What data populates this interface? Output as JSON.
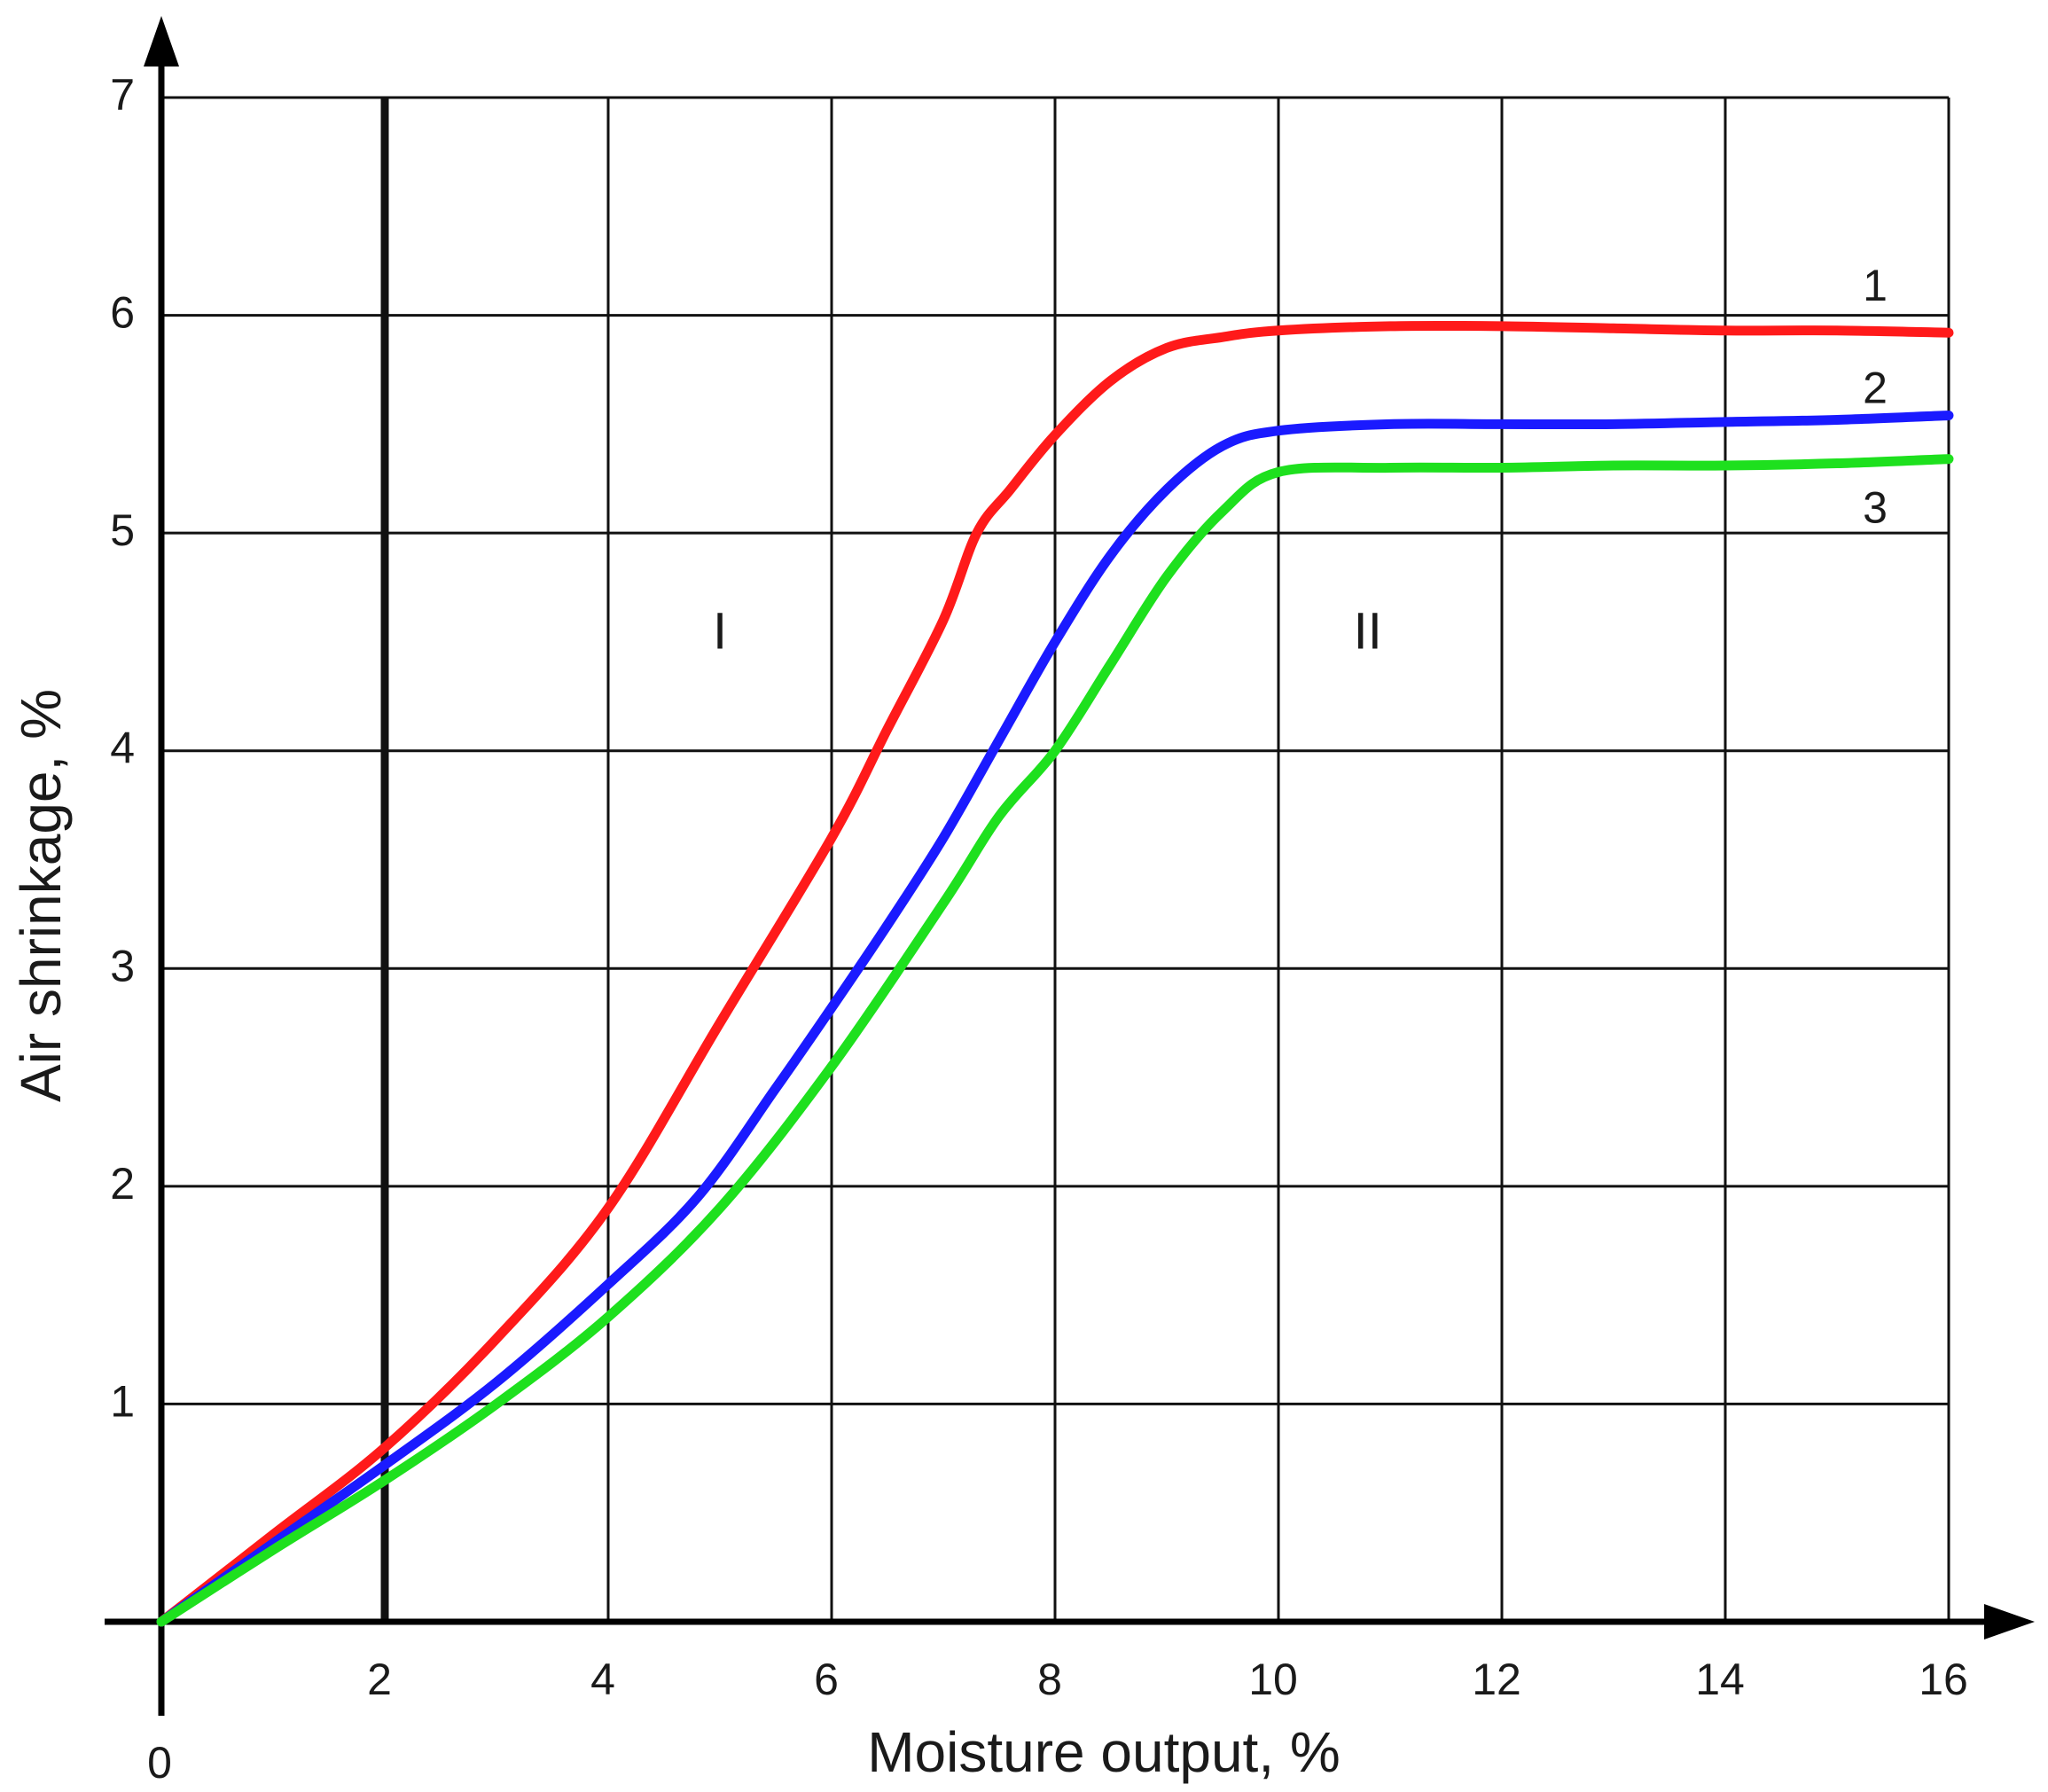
{
  "chart_data": {
    "type": "line",
    "xlabel": "Moisture output, %",
    "ylabel": "Air shrinkage, %",
    "xlim": [
      0,
      16
    ],
    "ylim": [
      0,
      7
    ],
    "grid": true,
    "x_ticks": [
      "2",
      "4",
      "6",
      "8",
      "10",
      "12",
      "14",
      "16"
    ],
    "origin_label": "0",
    "y_ticks": [
      "1",
      "2",
      "3",
      "4",
      "5",
      "6",
      "7"
    ],
    "bold_vertical_gridline_x": 2,
    "series": [
      {
        "name": "1",
        "color": "#ff1a1a",
        "x": [
          0,
          1,
          2,
          3,
          4,
          5,
          6,
          6.5,
          7,
          7.3,
          7.6,
          8,
          8.5,
          9,
          9.5,
          10,
          11,
          12,
          13,
          14,
          15,
          16
        ],
        "y": [
          0,
          0.4,
          0.8,
          1.3,
          1.9,
          2.75,
          3.6,
          4.1,
          4.6,
          5.0,
          5.2,
          5.45,
          5.7,
          5.85,
          5.9,
          5.93,
          5.95,
          5.95,
          5.94,
          5.93,
          5.93,
          5.92
        ]
      },
      {
        "name": "2",
        "color": "#1a1aff",
        "x": [
          0,
          1,
          2,
          3,
          4,
          4.8,
          5.5,
          6,
          6.5,
          7,
          7.5,
          8,
          8.5,
          9,
          9.5,
          10,
          11,
          12,
          13,
          14,
          15,
          16
        ],
        "y": [
          0,
          0.36,
          0.72,
          1.1,
          1.55,
          1.95,
          2.45,
          2.82,
          3.2,
          3.6,
          4.05,
          4.5,
          4.9,
          5.2,
          5.4,
          5.47,
          5.5,
          5.5,
          5.5,
          5.51,
          5.52,
          5.54
        ]
      },
      {
        "name": "3",
        "color": "#1ee01e",
        "x": [
          0,
          1,
          2,
          3,
          4,
          5,
          6,
          7,
          7.5,
          8,
          8.5,
          9,
          9.5,
          10,
          11,
          12,
          13,
          14,
          15,
          16
        ],
        "y": [
          0,
          0.33,
          0.65,
          1.0,
          1.4,
          1.9,
          2.55,
          3.3,
          3.7,
          4.0,
          4.4,
          4.8,
          5.1,
          5.28,
          5.3,
          5.3,
          5.31,
          5.31,
          5.32,
          5.34
        ]
      }
    ],
    "region_labels": [
      {
        "text": "I",
        "x": 5,
        "y": 4.55
      },
      {
        "text": "II",
        "x": 10.8,
        "y": 4.55
      }
    ]
  }
}
